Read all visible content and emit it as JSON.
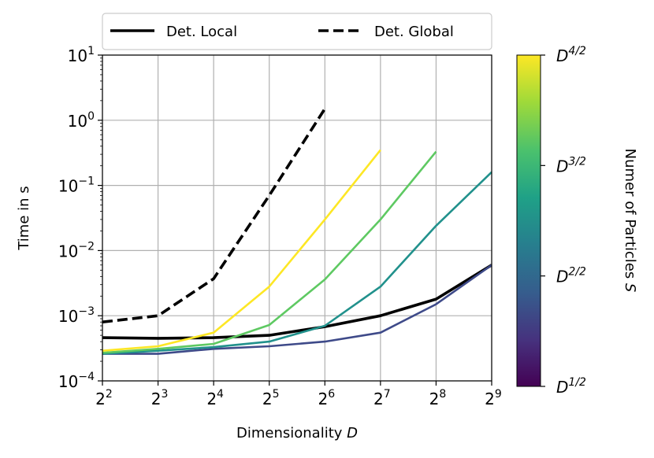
{
  "chart_data": {
    "type": "line",
    "xlabel": "Dimensionality D",
    "ylabel": "Time in s",
    "x_scale": "log2",
    "y_scale": "log10",
    "xlim": [
      4,
      512
    ],
    "ylim": [
      0.0001,
      10
    ],
    "x": [
      4,
      8,
      16,
      32,
      64,
      128,
      256,
      512
    ],
    "x_ticks": [
      {
        "value": 4,
        "base": "2",
        "exp": "2"
      },
      {
        "value": 8,
        "base": "2",
        "exp": "3"
      },
      {
        "value": 16,
        "base": "2",
        "exp": "4"
      },
      {
        "value": 32,
        "base": "2",
        "exp": "5"
      },
      {
        "value": 64,
        "base": "2",
        "exp": "6"
      },
      {
        "value": 128,
        "base": "2",
        "exp": "7"
      },
      {
        "value": 256,
        "base": "2",
        "exp": "8"
      },
      {
        "value": 512,
        "base": "2",
        "exp": "9"
      }
    ],
    "y_ticks": [
      {
        "value": 10,
        "base": "10",
        "exp": "1"
      },
      {
        "value": 1,
        "base": "10",
        "exp": "0"
      },
      {
        "value": 0.1,
        "base": "10",
        "exp": "−1"
      },
      {
        "value": 0.01,
        "base": "10",
        "exp": "−2"
      },
      {
        "value": 0.001,
        "base": "10",
        "exp": "−3"
      },
      {
        "value": 0.0001,
        "base": "10",
        "exp": "−4"
      }
    ],
    "grid": true,
    "legend_position": "top",
    "series": [
      {
        "name": "Det. Local",
        "style": "solid",
        "color": "#000000",
        "values": [
          0.00046,
          0.00045,
          0.00046,
          0.0005,
          0.00068,
          0.001,
          0.0018,
          0.006
        ]
      },
      {
        "name": "Det. Global",
        "style": "dashed",
        "color": "#000000",
        "values": [
          0.0008,
          0.001,
          0.0037,
          0.07,
          1.5,
          null,
          null,
          null
        ]
      },
      {
        "style": "solid",
        "color": "#3e4a89",
        "values": [
          0.00026,
          0.00026,
          0.00031,
          0.00034,
          0.0004,
          0.00055,
          0.0015,
          0.006
        ]
      },
      {
        "style": "solid",
        "color": "#21918c",
        "values": [
          0.00026,
          0.00029,
          0.00033,
          0.0004,
          0.0007,
          0.0028,
          0.024,
          0.16
        ]
      },
      {
        "style": "solid",
        "color": "#5ec962",
        "values": [
          0.00027,
          0.00031,
          0.00037,
          0.00072,
          0.0036,
          0.03,
          0.33,
          null
        ]
      },
      {
        "style": "solid",
        "color": "#fde725",
        "values": [
          0.00029,
          0.00034,
          0.00055,
          0.0028,
          0.03,
          0.35,
          null,
          null
        ]
      }
    ],
    "colorbar": {
      "label": "Numer of Particles S",
      "colormap": "viridis",
      "ticks": [
        {
          "base": "D",
          "exp": "4/2"
        },
        {
          "base": "D",
          "exp": "3/2"
        },
        {
          "base": "D",
          "exp": "2/2"
        },
        {
          "base": "D",
          "exp": "1/2"
        }
      ]
    }
  }
}
